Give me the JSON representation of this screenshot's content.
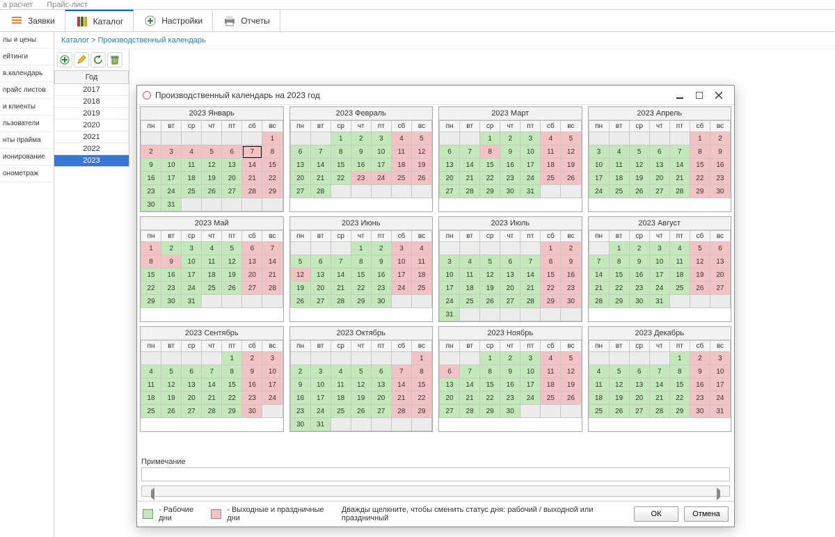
{
  "top_strip": {
    "left": "а расчет",
    "right": "Прайс-лист"
  },
  "main_tabs": [
    {
      "label": "Заявки",
      "icon": "list-icon"
    },
    {
      "label": "Каталог",
      "icon": "books-icon",
      "active": true
    },
    {
      "label": "Настройки",
      "icon": "plus-gear-icon"
    },
    {
      "label": "Отчеты",
      "icon": "printer-icon"
    }
  ],
  "left_nav": [
    "лы и цены",
    "ейтинги",
    "в.календарь",
    "прайс листов",
    "и клиенты",
    "льзователи",
    "нты прайма",
    "ионирование",
    "онометраж"
  ],
  "breadcrumb": {
    "root": "Каталог",
    "sep": ">",
    "leaf": "Производственный календарь"
  },
  "year_panel": {
    "header": "Год",
    "years": [
      "2017",
      "2018",
      "2019",
      "2020",
      "2021",
      "2022",
      "2023"
    ],
    "selected": "2023"
  },
  "dialog": {
    "title": "Производственный календарь на 2023 год",
    "note_label": "Примечание",
    "note_value": "",
    "legend_work": "- Рабочие дни",
    "legend_holiday": "- Выходные и праздничные дни",
    "hint": "Дважды щелкните, чтобы сменить статус дня: рабочий / выходной или праздничный",
    "ok": "ОК",
    "cancel": "Отмена",
    "colors": {
      "work": "#c3e8b9",
      "holiday": "#f3c3c3",
      "empty": "#ececec"
    },
    "dow": [
      "пн",
      "вт",
      "ср",
      "чт",
      "пт",
      "сб",
      "вс"
    ],
    "today": {
      "month": 0,
      "day": 7
    },
    "months": [
      {
        "title": "2023 Январь",
        "start": 6,
        "days": 31,
        "hol": [
          1,
          2,
          3,
          4,
          5,
          6,
          7,
          8,
          14,
          15,
          21,
          22,
          28,
          29
        ]
      },
      {
        "title": "2023 Февраль",
        "start": 2,
        "days": 28,
        "hol": [
          4,
          5,
          11,
          12,
          18,
          19,
          23,
          24,
          25,
          26
        ]
      },
      {
        "title": "2023 Март",
        "start": 2,
        "days": 31,
        "hol": [
          4,
          5,
          8,
          11,
          12,
          18,
          19,
          25,
          26
        ]
      },
      {
        "title": "2023 Апрель",
        "start": 5,
        "days": 30,
        "hol": [
          1,
          2,
          8,
          9,
          15,
          16,
          22,
          23,
          29,
          30
        ]
      },
      {
        "title": "2023 Май",
        "start": 0,
        "days": 31,
        "hol": [
          1,
          6,
          7,
          8,
          9,
          13,
          14,
          20,
          21,
          27,
          28
        ]
      },
      {
        "title": "2023 Июнь",
        "start": 3,
        "days": 30,
        "hol": [
          3,
          4,
          10,
          11,
          12,
          17,
          18,
          24,
          25
        ]
      },
      {
        "title": "2023 Июль",
        "start": 5,
        "days": 31,
        "hol": [
          1,
          2,
          8,
          9,
          15,
          16,
          22,
          23,
          29,
          30
        ]
      },
      {
        "title": "2023 Август",
        "start": 1,
        "days": 31,
        "hol": [
          5,
          6,
          12,
          13,
          19,
          20,
          26,
          27
        ]
      },
      {
        "title": "2023 Сентябрь",
        "start": 4,
        "days": 30,
        "hol": [
          2,
          3,
          9,
          10,
          16,
          17,
          23,
          24,
          30
        ]
      },
      {
        "title": "2023 Октябрь",
        "start": 6,
        "days": 31,
        "hol": [
          1,
          7,
          8,
          14,
          15,
          21,
          22,
          28,
          29
        ]
      },
      {
        "title": "2023 Ноябрь",
        "start": 2,
        "days": 30,
        "hol": [
          4,
          5,
          6,
          11,
          12,
          18,
          19,
          25,
          26
        ]
      },
      {
        "title": "2023 Декабрь",
        "start": 4,
        "days": 31,
        "hol": [
          2,
          3,
          9,
          10,
          16,
          17,
          23,
          24,
          30,
          31
        ]
      }
    ]
  }
}
